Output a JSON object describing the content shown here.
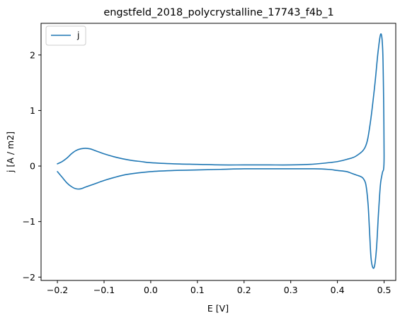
{
  "chart_data": {
    "type": "line",
    "title": "engstfeld_2018_polycrystalline_17743_f4b_1",
    "xlabel": "E [V]",
    "ylabel": "j [A / m2]",
    "xlim": [
      -0.235,
      0.525
    ],
    "ylim": [
      -2.06,
      2.57
    ],
    "x_ticks": [
      -0.2,
      -0.1,
      0.0,
      0.1,
      0.2,
      0.3,
      0.4,
      0.5
    ],
    "x_tick_labels": [
      "−0.2",
      "−0.1",
      "0.0",
      "0.1",
      "0.2",
      "0.3",
      "0.4",
      "0.5"
    ],
    "y_ticks": [
      -2,
      -1,
      0,
      1,
      2
    ],
    "y_tick_labels": [
      "−2",
      "−1",
      "0",
      "1",
      "2"
    ],
    "grid": false,
    "legend_position": "upper-left",
    "series": [
      {
        "name": "j",
        "color": "#1f77b4",
        "x": [
          -0.2,
          -0.19,
          -0.18,
          -0.17,
          -0.16,
          -0.15,
          -0.14,
          -0.13,
          -0.12,
          -0.11,
          -0.1,
          -0.08,
          -0.06,
          -0.04,
          -0.02,
          0.0,
          0.05,
          0.1,
          0.15,
          0.2,
          0.25,
          0.3,
          0.34,
          0.37,
          0.4,
          0.42,
          0.44,
          0.46,
          0.47,
          0.48,
          0.487,
          0.493,
          0.497,
          0.499,
          0.5,
          0.499,
          0.497,
          0.495,
          0.492,
          0.488,
          0.484,
          0.48,
          0.476,
          0.472,
          0.469,
          0.466,
          0.463,
          0.46,
          0.455,
          0.45,
          0.44,
          0.43,
          0.42,
          0.4,
          0.38,
          0.35,
          0.3,
          0.25,
          0.2,
          0.15,
          0.1,
          0.05,
          0.0,
          -0.05,
          -0.08,
          -0.1,
          -0.12,
          -0.14,
          -0.15,
          -0.16,
          -0.17,
          -0.18,
          -0.19,
          -0.2
        ],
        "y": [
          0.04,
          0.08,
          0.14,
          0.22,
          0.28,
          0.31,
          0.32,
          0.31,
          0.28,
          0.25,
          0.22,
          0.17,
          0.13,
          0.1,
          0.08,
          0.06,
          0.04,
          0.03,
          0.02,
          0.02,
          0.02,
          0.02,
          0.03,
          0.05,
          0.08,
          0.12,
          0.18,
          0.35,
          0.75,
          1.45,
          2.05,
          2.38,
          2.1,
          1.2,
          0.2,
          -0.05,
          -0.1,
          -0.18,
          -0.35,
          -0.85,
          -1.45,
          -1.78,
          -1.83,
          -1.65,
          -1.2,
          -0.72,
          -0.45,
          -0.3,
          -0.22,
          -0.19,
          -0.16,
          -0.13,
          -0.1,
          -0.08,
          -0.06,
          -0.05,
          -0.05,
          -0.05,
          -0.05,
          -0.06,
          -0.07,
          -0.08,
          -0.1,
          -0.15,
          -0.21,
          -0.26,
          -0.32,
          -0.38,
          -0.41,
          -0.41,
          -0.37,
          -0.3,
          -0.2,
          -0.1
        ]
      }
    ]
  }
}
